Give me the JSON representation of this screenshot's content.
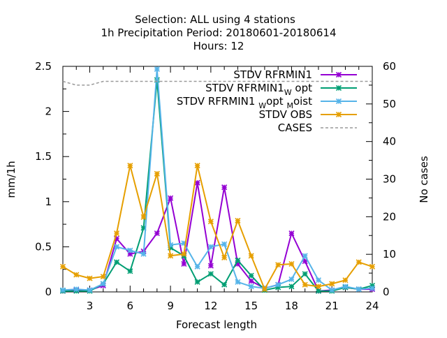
{
  "chart_data": {
    "type": "line",
    "title_lines": [
      "Selection: ALL using     4 stations",
      "1h Precipitation   Period: 20180601-20180614",
      "Hours:  12"
    ],
    "xlabel": "Forecast length",
    "ylabel": "mm/1h",
    "y2label": "No cases",
    "xlim": [
      1,
      24
    ],
    "ylim": [
      0,
      2.5
    ],
    "y2lim": [
      0,
      60
    ],
    "xticks": [
      3,
      6,
      9,
      12,
      15,
      18,
      21,
      24
    ],
    "yticks": [
      "0",
      "0.5",
      "1",
      "1.5",
      "2",
      "2.5"
    ],
    "y2ticks": [
      "0",
      "10",
      "20",
      "30",
      "40",
      "50",
      "60"
    ],
    "legend_position": "top-right",
    "x": [
      1,
      2,
      3,
      4,
      5,
      6,
      7,
      8,
      9,
      10,
      11,
      12,
      13,
      14,
      15,
      16,
      17,
      18,
      19,
      20,
      21,
      22,
      23,
      24
    ],
    "series": [
      {
        "name": "STDV RFRMIN1",
        "label_parts": [
          {
            "t": "STDV RFRMIN1"
          }
        ],
        "color": "#9400d3",
        "dashed": false,
        "marker": true,
        "axis": "y1",
        "values": [
          0.01,
          0.02,
          0.02,
          0.07,
          0.59,
          0.42,
          0.45,
          0.65,
          1.04,
          0.31,
          1.21,
          0.29,
          1.16,
          0.31,
          0.12,
          0.04,
          0.08,
          0.65,
          0.34,
          0.01,
          0.02,
          0.05,
          0.03,
          0.03
        ]
      },
      {
        "name": "STDV RFRMIN1 W opt",
        "label_parts": [
          {
            "t": "STDV RFRMIN1"
          },
          {
            "t": "W",
            "sub": true
          },
          {
            "t": " opt"
          }
        ],
        "color": "#009e73",
        "dashed": false,
        "marker": true,
        "axis": "y1",
        "values": [
          0.01,
          0.01,
          0.01,
          0.09,
          0.33,
          0.23,
          0.71,
          2.35,
          0.49,
          0.4,
          0.11,
          0.2,
          0.08,
          0.35,
          0.18,
          0.02,
          0.05,
          0.06,
          0.2,
          0.01,
          0.01,
          0.05,
          0.03,
          0.07
        ]
      },
      {
        "name": "STDV RFRMIN1 W opt M oist",
        "label_parts": [
          {
            "t": "STDV RFRMIN1 "
          },
          {
            "t": "W",
            "sub": true
          },
          {
            "t": "opt "
          },
          {
            "t": "M",
            "sub": true
          },
          {
            "t": "oist"
          }
        ],
        "color": "#56b4e9",
        "dashed": false,
        "marker": true,
        "axis": "y1",
        "values": [
          0.02,
          0.03,
          0.02,
          0.09,
          0.5,
          0.46,
          0.42,
          2.47,
          0.52,
          0.54,
          0.28,
          0.5,
          0.53,
          0.11,
          0.06,
          0.04,
          0.08,
          0.14,
          0.4,
          0.13,
          0.02,
          0.06,
          0.03,
          0.04
        ]
      },
      {
        "name": "STDV OBS",
        "label_parts": [
          {
            "t": "STDV OBS"
          }
        ],
        "color": "#e69f00",
        "dashed": false,
        "marker": true,
        "axis": "y1",
        "values": [
          0.28,
          0.19,
          0.15,
          0.17,
          0.65,
          1.4,
          0.83,
          1.31,
          0.4,
          0.42,
          1.4,
          0.78,
          0.38,
          0.79,
          0.4,
          0.03,
          0.3,
          0.31,
          0.08,
          0.06,
          0.09,
          0.13,
          0.33,
          0.28
        ]
      },
      {
        "name": "CASES",
        "label_parts": [
          {
            "t": "CASES"
          }
        ],
        "color": "#999999",
        "dashed": true,
        "marker": false,
        "axis": "y2",
        "values": [
          56,
          55,
          55,
          56,
          56,
          56,
          56,
          56,
          56,
          56,
          56,
          56,
          56,
          56,
          56,
          56,
          56,
          56,
          56,
          56,
          56,
          56,
          56,
          56
        ]
      }
    ]
  }
}
